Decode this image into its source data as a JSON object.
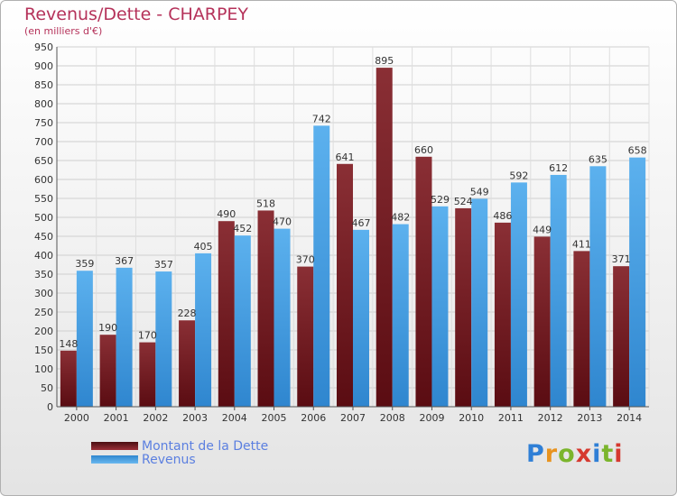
{
  "title": "Revenus/Dette - CHARPEY",
  "subtitle": "(en milliers d'€)",
  "logo": {
    "text": "Proxiti"
  },
  "colors": {
    "dette": "#7a1f27",
    "revenus": "#4aa3e6",
    "title": "#b5325a",
    "legend_text": "#5b7fe0"
  },
  "chart_data": {
    "type": "bar",
    "categories": [
      "2000",
      "2001",
      "2002",
      "2003",
      "2004",
      "2005",
      "2006",
      "2007",
      "2008",
      "2009",
      "2010",
      "2011",
      "2012",
      "2013",
      "2014"
    ],
    "series": [
      {
        "name": "Montant de la Dette",
        "values": [
          148,
          190,
          170,
          228,
          490,
          518,
          370,
          641,
          895,
          660,
          524,
          486,
          449,
          411,
          371
        ]
      },
      {
        "name": "Revenus",
        "values": [
          359,
          367,
          357,
          405,
          452,
          470,
          742,
          467,
          482,
          529,
          549,
          592,
          612,
          635,
          658
        ]
      }
    ],
    "ylim": [
      0,
      950
    ],
    "yticks": [
      0,
      50,
      100,
      150,
      200,
      250,
      300,
      350,
      400,
      450,
      500,
      550,
      600,
      650,
      700,
      750,
      800,
      850,
      900,
      950
    ],
    "grid": true,
    "legend_position": "bottom-left"
  }
}
